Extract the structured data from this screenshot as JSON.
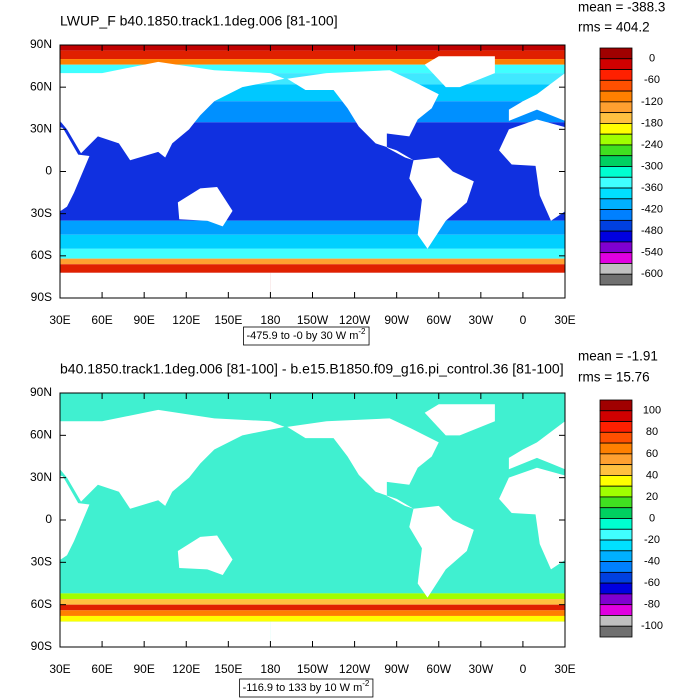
{
  "axes": {
    "lat_labels": [
      "90N",
      "60N",
      "30N",
      "0",
      "30S",
      "60S",
      "90S"
    ],
    "lon_labels": [
      "30E",
      "60E",
      "90E",
      "120E",
      "150E",
      "180",
      "150W",
      "120W",
      "90W",
      "60W",
      "30W",
      "0",
      "30E"
    ]
  },
  "panels": [
    {
      "title": "LWUP_F b40.1850.track1.1deg.006 [81-100]",
      "stats": [
        "mean = -388.3",
        "rms = 404.2"
      ],
      "range": "-475.9 to -0 by 30",
      "units": "W m",
      "units_exponent": "-2",
      "colorbar_labels": [
        0,
        -60,
        -120,
        -180,
        -240,
        -300,
        -360,
        -420,
        -480,
        -540,
        -600
      ]
    },
    {
      "title": "b40.1850.track1.1deg.006 [81-100] - b.e15.B1850.f09_g16.pi_control.36 [81-100]",
      "stats": [
        "mean = -1.91",
        "rms = 15.76"
      ],
      "range": "-116.9 to 133 by 10",
      "units": "W m",
      "units_exponent": "-2",
      "colorbar_labels": [
        100,
        80,
        60,
        40,
        20,
        0,
        -20,
        -40,
        -60,
        -80,
        -100
      ]
    }
  ],
  "colorbar_colors": [
    "#a00000",
    "#d00000",
    "#ff2000",
    "#ff5000",
    "#ff8000",
    "#ffa030",
    "#ffc040",
    "#ffff00",
    "#a0ff00",
    "#40e020",
    "#00d060",
    "#00ffd0",
    "#40ffff",
    "#00e0ff",
    "#00b0ff",
    "#0080ff",
    "#0040e0",
    "#0000e0",
    "#8000d0",
    "#e000e0",
    "#c0c0c0",
    "#707070"
  ]
}
